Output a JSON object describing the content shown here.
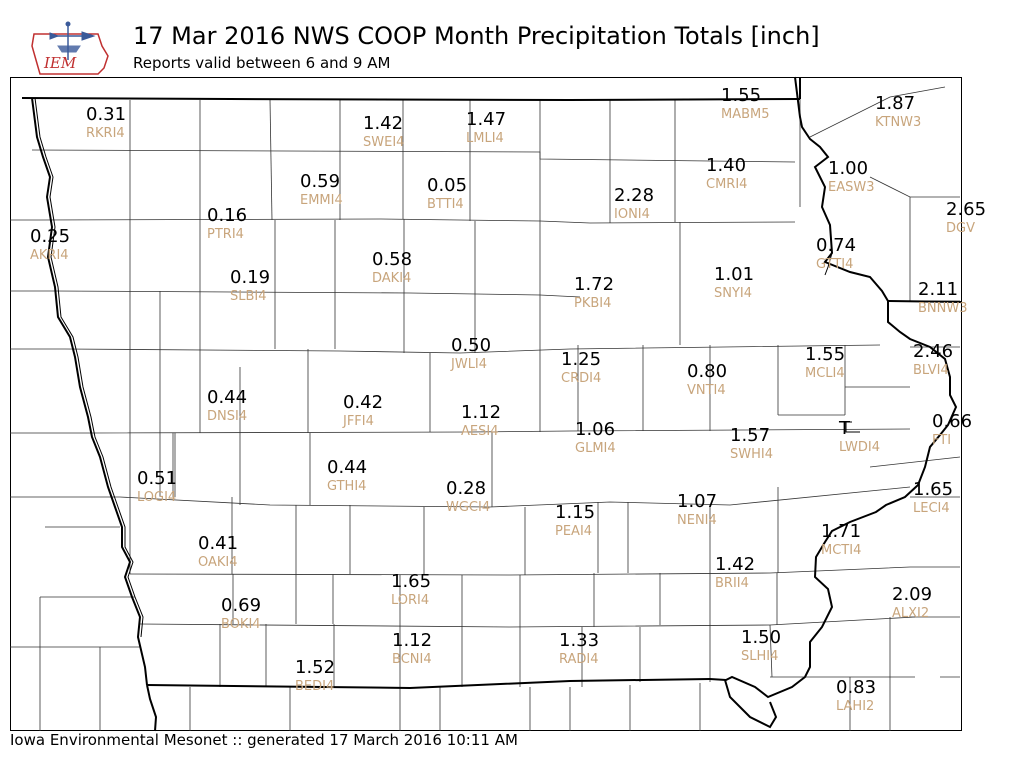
{
  "logo": {
    "text": "IEM",
    "icon": "iowa-state-outline-weather-vane"
  },
  "title": "17 Mar 2016 NWS COOP Month Precipitation Totals [inch]",
  "subtitle": "Reports valid between 6 and 9 AM",
  "footer": "Iowa Environmental Mesonet :: generated 17 March 2016 10:11 AM",
  "colors": {
    "value": "#000000",
    "station": "#c8a57c",
    "county_lines": "#333333"
  },
  "stations": [
    {
      "id": "RKRI4",
      "value": "0.31"
    },
    {
      "id": "SWEI4",
      "value": "1.42"
    },
    {
      "id": "LMLI4",
      "value": "1.47"
    },
    {
      "id": "MABM5",
      "value": "1.55"
    },
    {
      "id": "KTNW3",
      "value": "1.87"
    },
    {
      "id": "CMRI4",
      "value": "1.40"
    },
    {
      "id": "EASW3",
      "value": "1.00"
    },
    {
      "id": "EMMI4",
      "value": "0.59"
    },
    {
      "id": "BTTI4",
      "value": "0.05"
    },
    {
      "id": "IONI4",
      "value": "2.28"
    },
    {
      "id": "PTRI4",
      "value": "0.16"
    },
    {
      "id": "DGV",
      "value": "2.65"
    },
    {
      "id": "AKRI4",
      "value": "0.25"
    },
    {
      "id": "GTTI4",
      "value": "0.74"
    },
    {
      "id": "SLBI4",
      "value": "0.19"
    },
    {
      "id": "DAKI4",
      "value": "0.58"
    },
    {
      "id": "PKBI4",
      "value": "1.72"
    },
    {
      "id": "SNYI4",
      "value": "1.01"
    },
    {
      "id": "BNNW3",
      "value": "2.11"
    },
    {
      "id": "JWLI4",
      "value": "0.50"
    },
    {
      "id": "CRDI4",
      "value": "1.25"
    },
    {
      "id": "VNTI4",
      "value": "0.80"
    },
    {
      "id": "MCLI4",
      "value": "1.55"
    },
    {
      "id": "BLVI4",
      "value": "2.46"
    },
    {
      "id": "DNSI4",
      "value": "0.44"
    },
    {
      "id": "JFFI4",
      "value": "0.42"
    },
    {
      "id": "AESI4",
      "value": "1.12"
    },
    {
      "id": "GLMI4",
      "value": "1.06"
    },
    {
      "id": "SWHI4",
      "value": "1.57"
    },
    {
      "id": "LWDI4",
      "value": "T"
    },
    {
      "id": "FTI",
      "value": "0.66"
    },
    {
      "id": "LOGI4",
      "value": "0.51"
    },
    {
      "id": "GTHI4",
      "value": "0.44"
    },
    {
      "id": "WGCI4",
      "value": "0.28"
    },
    {
      "id": "PEAI4",
      "value": "1.15"
    },
    {
      "id": "NENI4",
      "value": "1.07"
    },
    {
      "id": "LECI4",
      "value": "1.65"
    },
    {
      "id": "MCTI4",
      "value": "1.71"
    },
    {
      "id": "OAKI4",
      "value": "0.41"
    },
    {
      "id": "BRII4",
      "value": "1.42"
    },
    {
      "id": "LORI4",
      "value": "1.65"
    },
    {
      "id": "BOKI4",
      "value": "0.69"
    },
    {
      "id": "ALXI2",
      "value": "2.09"
    },
    {
      "id": "BCNI4",
      "value": "1.12"
    },
    {
      "id": "RADI4",
      "value": "1.33"
    },
    {
      "id": "SLHI4",
      "value": "1.50"
    },
    {
      "id": "BEDI4",
      "value": "1.52"
    },
    {
      "id": "LAHI2",
      "value": "0.83"
    }
  ]
}
